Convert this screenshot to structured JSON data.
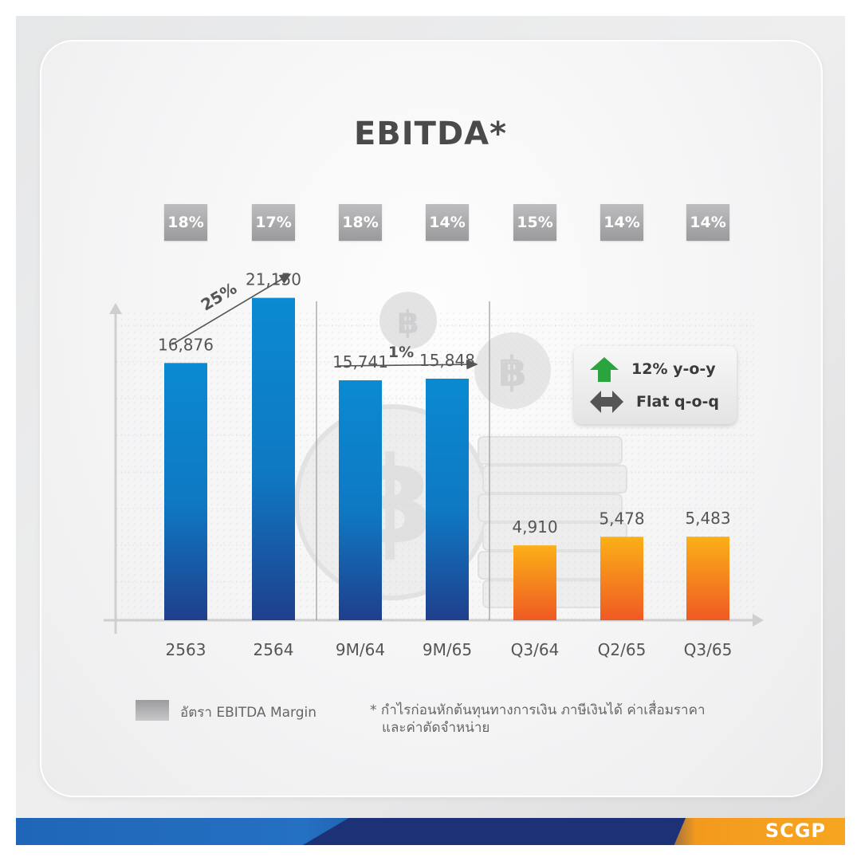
{
  "title": "EBITDA*",
  "chart_data": {
    "type": "bar",
    "title": "EBITDA*",
    "categories": [
      "2563",
      "2564",
      "9M/64",
      "9M/65",
      "Q3/64",
      "Q2/65",
      "Q3/65"
    ],
    "values": [
      16876,
      21150,
      15741,
      15848,
      4910,
      5478,
      5483
    ],
    "value_labels": [
      "16,876",
      "21,150",
      "15,741",
      "15,848",
      "4,910",
      "5,478",
      "5,483"
    ],
    "ebitda_margin": [
      "18%",
      "17%",
      "18%",
      "14%",
      "15%",
      "14%",
      "14%"
    ],
    "groups": [
      {
        "name": "annual",
        "categories": [
          "2563",
          "2564"
        ],
        "color": "blue"
      },
      {
        "name": "nine-month",
        "categories": [
          "9M/64",
          "9M/65"
        ],
        "color": "blue"
      },
      {
        "name": "quarterly",
        "categories": [
          "Q3/64",
          "Q2/65",
          "Q3/65"
        ],
        "color": "orange"
      }
    ],
    "ylim": [
      0,
      25000
    ],
    "annotations": [
      {
        "text": "25%",
        "from": "2563",
        "to": "2564"
      },
      {
        "text": "1%",
        "from": "9M/64",
        "to": "9M/65"
      }
    ],
    "grid": true,
    "xlabel": "",
    "ylabel": ""
  },
  "colors": {
    "blue_top": "#0a8ad2",
    "blue_bottom": "#1f3f8c",
    "orange_top": "#fbb017",
    "orange_bottom": "#ef5a24",
    "up_green": "#2aa43d",
    "flat_gray": "#555555"
  },
  "change_box": {
    "yoy_label": "12% y-o-y",
    "qoq_label": "Flat q-o-q",
    "yoy_icon": "up-arrow-icon",
    "qoq_icon": "left-right-arrow-icon"
  },
  "legend": {
    "label": "อัตรา EBITDA Margin"
  },
  "footnote": {
    "line1": "* กำไรก่อนหักต้นทุนทางการเงิน ภาษีเงินได้ ค่าเสื่อมราคา",
    "line2": "และค่าตัดจำหน่าย"
  },
  "brand": "SCGP"
}
